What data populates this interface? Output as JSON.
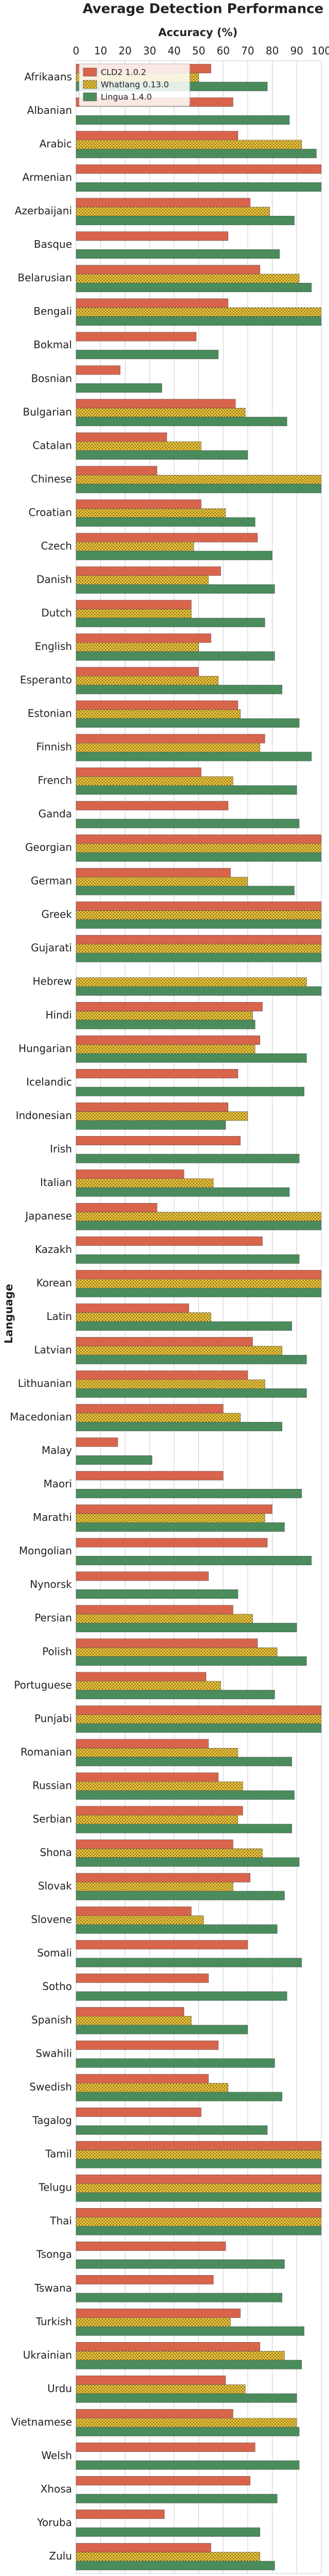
{
  "chart_data": {
    "type": "barh",
    "title": "Average Detection Performance",
    "xlabel": "Accuracy (%)",
    "ylabel": "Language",
    "categories": [
      "Afrikaans",
      "Albanian",
      "Arabic",
      "Armenian",
      "Azerbaijani",
      "Basque",
      "Belarusian",
      "Bengali",
      "Bokmal",
      "Bosnian",
      "Bulgarian",
      "Catalan",
      "Chinese",
      "Croatian",
      "Czech",
      "Danish",
      "Dutch",
      "English",
      "Esperanto",
      "Estonian",
      "Finnish",
      "French",
      "Ganda",
      "Georgian",
      "German",
      "Greek",
      "Gujarati",
      "Hebrew",
      "Hindi",
      "Hungarian",
      "Icelandic",
      "Indonesian",
      "Irish",
      "Italian",
      "Japanese",
      "Kazakh",
      "Korean",
      "Latin",
      "Latvian",
      "Lithuanian",
      "Macedonian",
      "Malay",
      "Maori",
      "Marathi",
      "Mongolian",
      "Nynorsk",
      "Persian",
      "Polish",
      "Portuguese",
      "Punjabi",
      "Romanian",
      "Russian",
      "Serbian",
      "Shona",
      "Slovak",
      "Slovene",
      "Somali",
      "Sotho",
      "Spanish",
      "Swahili",
      "Swedish",
      "Tagalog",
      "Tamil",
      "Telugu",
      "Thai",
      "Tsonga",
      "Tswana",
      "Turkish",
      "Ukrainian",
      "Urdu",
      "Vietnamese",
      "Welsh",
      "Xhosa",
      "Yoruba",
      "Zulu"
    ],
    "series": [
      {
        "name": "CLD2 1.0.2",
        "color": "#d9644c",
        "values": [
          55,
          64,
          66,
          100,
          71,
          62,
          75,
          62,
          49,
          18,
          65,
          37,
          33,
          51,
          74,
          59,
          47,
          55,
          50,
          66,
          77,
          51,
          62,
          100,
          63,
          100,
          100,
          null,
          76,
          75,
          66,
          62,
          67,
          44,
          33,
          76,
          100,
          46,
          72,
          70,
          60,
          17,
          60,
          80,
          78,
          54,
          64,
          74,
          53,
          100,
          54,
          58,
          68,
          64,
          71,
          47,
          70,
          54,
          44,
          58,
          54,
          51,
          100,
          100,
          100,
          61,
          56,
          67,
          75,
          61,
          64,
          73,
          71,
          36,
          55
        ]
      },
      {
        "name": "Whatlang 0.13.0",
        "color": "#e8c13a",
        "hatch": true,
        "values": [
          50,
          null,
          92,
          null,
          79,
          null,
          91,
          100,
          null,
          null,
          69,
          51,
          100,
          61,
          48,
          54,
          47,
          50,
          58,
          67,
          75,
          64,
          null,
          100,
          70,
          100,
          100,
          94,
          72,
          73,
          null,
          70,
          null,
          56,
          100,
          null,
          100,
          55,
          84,
          77,
          67,
          null,
          null,
          77,
          null,
          null,
          72,
          82,
          59,
          100,
          66,
          68,
          66,
          76,
          64,
          52,
          null,
          null,
          47,
          null,
          62,
          null,
          100,
          100,
          100,
          null,
          null,
          63,
          85,
          69,
          90,
          null,
          null,
          null,
          75
        ]
      },
      {
        "name": "Lingua 1.4.0",
        "color": "#4a8c5c",
        "values": [
          78,
          87,
          98,
          100,
          89,
          83,
          96,
          100,
          58,
          35,
          86,
          70,
          100,
          73,
          80,
          81,
          77,
          81,
          84,
          91,
          96,
          90,
          91,
          100,
          89,
          100,
          100,
          100,
          73,
          94,
          93,
          61,
          91,
          87,
          100,
          91,
          100,
          88,
          94,
          94,
          84,
          31,
          92,
          85,
          96,
          66,
          90,
          94,
          81,
          100,
          88,
          89,
          88,
          91,
          85,
          82,
          92,
          86,
          70,
          81,
          84,
          78,
          100,
          100,
          100,
          85,
          84,
          93,
          92,
          90,
          91,
          91,
          82,
          75,
          81
        ]
      }
    ],
    "xlim": [
      0,
      100
    ],
    "xticks": [
      0,
      10,
      20,
      30,
      40,
      50,
      60,
      70,
      80,
      90,
      100
    ],
    "grid": true,
    "legend": "upper left"
  }
}
